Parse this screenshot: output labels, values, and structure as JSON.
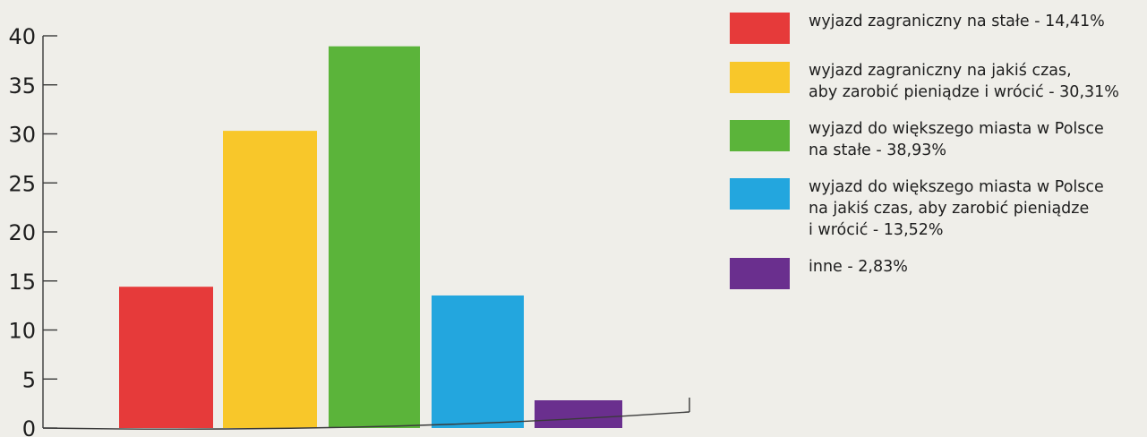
{
  "chart_data": {
    "type": "bar",
    "categories": [
      "wyjazd zagraniczny na stałe",
      "wyjazd zagraniczny na jakiś czas, aby zarobić pieniądze i wrócić",
      "wyjazd do większego miasta w Polsce na stałe",
      "wyjazd do większego miasta w Polsce na jakiś czas, aby zarobić pieniądze i wrócić",
      "inne"
    ],
    "values": [
      14.41,
      30.31,
      38.93,
      13.52,
      2.83
    ],
    "colors": [
      "#e63a3a",
      "#f8c72a",
      "#5bb43a",
      "#23a6de",
      "#6a2f8e"
    ],
    "ylim": [
      0,
      40
    ],
    "yticks": [
      "0",
      "5",
      "10",
      "15",
      "20",
      "25",
      "30",
      "35",
      "40"
    ],
    "title": "",
    "xlabel": "",
    "ylabel": "",
    "grid": false,
    "legend_position": "right",
    "legend": [
      {
        "lines": [
          "wyjazd zagraniczny na stałe - 14,41%"
        ],
        "color": "#e63a3a"
      },
      {
        "lines": [
          "wyjazd zagraniczny na jakiś czas,",
          "aby zarobić pieniądze i wrócić - 30,31%"
        ],
        "color": "#f8c72a"
      },
      {
        "lines": [
          "wyjazd do większego miasta w Polsce",
          "na stałe - 38,93%"
        ],
        "color": "#5bb43a"
      },
      {
        "lines": [
          "wyjazd do większego miasta w Polsce",
          "na jakiś czas, aby zarobić pieniądze",
          "i wrócić - 13,52%"
        ],
        "color": "#23a6de"
      },
      {
        "lines": [
          "inne - 2,83%"
        ],
        "color": "#6a2f8e"
      }
    ]
  }
}
